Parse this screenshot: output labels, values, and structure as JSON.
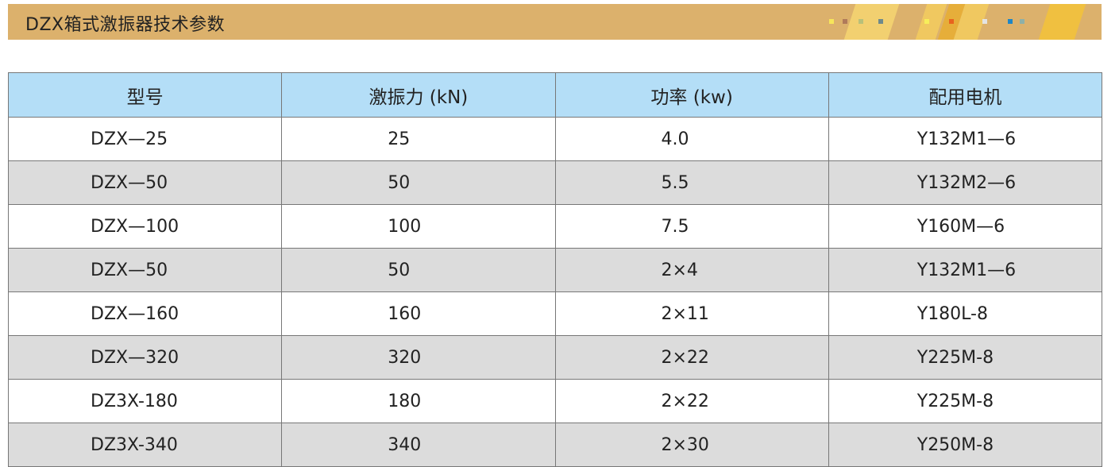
{
  "banner": {
    "title": "DZX箱式激振器技术参数",
    "decor_colors": [
      "#f7e65a",
      "#b07a5a",
      "#b8c07a",
      "#6e8a8c",
      "#f7ee5a",
      "#e8641e",
      "#e4e4e2",
      "#1e86c6",
      "#8eb0a8"
    ]
  },
  "table": {
    "headers": [
      "型号",
      "激振力 (kN)",
      "功率 (kw)",
      "配用电机"
    ],
    "rows": [
      [
        "DZX—25",
        "25",
        "4.0",
        "Y132M1—6"
      ],
      [
        "DZX—50",
        "50",
        "5.5",
        "Y132M2—6"
      ],
      [
        "DZX—100",
        "100",
        "7.5",
        "Y160M—6"
      ],
      [
        "DZX—50",
        "50",
        "2×4",
        "Y132M1—6"
      ],
      [
        "DZX—160",
        "160",
        "2×11",
        "Y180L-8"
      ],
      [
        "DZX—320",
        "320",
        "2×22",
        "Y225M-8"
      ],
      [
        "DZ3X-180",
        "180",
        "2×22",
        "Y225M-8"
      ],
      [
        "DZ3X-340",
        "340",
        "2×30",
        "Y250M-8"
      ]
    ]
  }
}
